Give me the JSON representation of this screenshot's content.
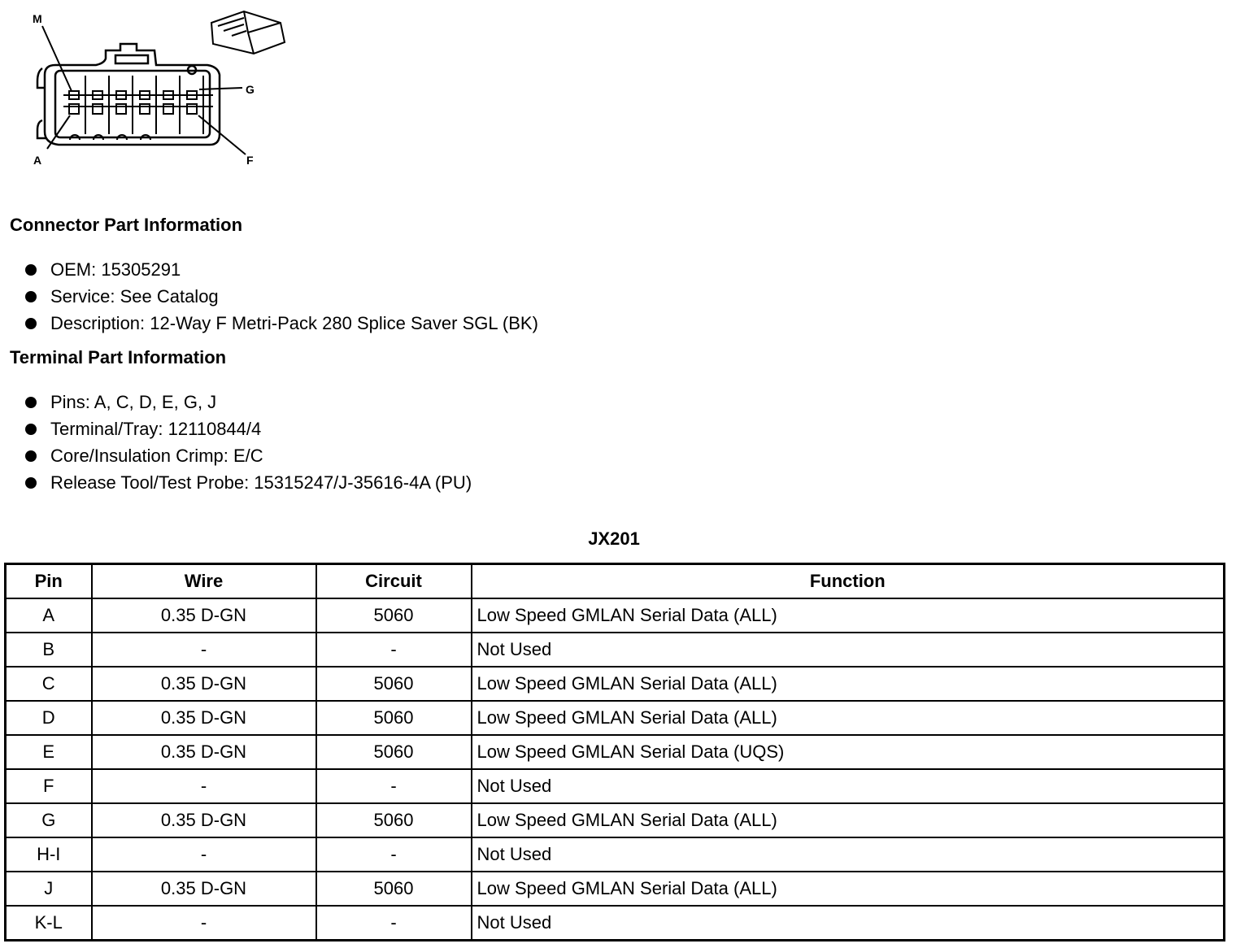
{
  "diagram": {
    "pin_labels": {
      "top_left": "M",
      "top_right": "G",
      "bottom_left": "A",
      "bottom_right": "F"
    }
  },
  "connector_info": {
    "heading": "Connector Part Information",
    "items": [
      "OEM: 15305291",
      "Service: See Catalog",
      "Description: 12-Way F Metri-Pack 280 Splice Saver SGL (BK)"
    ]
  },
  "terminal_info": {
    "heading": "Terminal Part Information",
    "items": [
      "Pins: A, C, D, E, G, J",
      "Terminal/Tray: 12110844/4",
      "Core/Insulation Crimp: E/C",
      "Release Tool/Test Probe: 15315247/J-35616-4A (PU)"
    ]
  },
  "table": {
    "title": "JX201",
    "headers": [
      "Pin",
      "Wire",
      "Circuit",
      "Function"
    ],
    "rows": [
      [
        "A",
        "0.35 D-GN",
        "5060",
        "Low Speed GMLAN Serial Data (ALL)"
      ],
      [
        "B",
        "-",
        "-",
        "Not Used"
      ],
      [
        "C",
        "0.35 D-GN",
        "5060",
        "Low Speed GMLAN Serial Data (ALL)"
      ],
      [
        "D",
        "0.35 D-GN",
        "5060",
        "Low Speed GMLAN Serial Data (ALL)"
      ],
      [
        "E",
        "0.35 D-GN",
        "5060",
        "Low Speed GMLAN Serial Data (UQS)"
      ],
      [
        "F",
        "-",
        "-",
        "Not Used"
      ],
      [
        "G",
        "0.35 D-GN",
        "5060",
        "Low Speed GMLAN Serial Data (ALL)"
      ],
      [
        "H-I",
        "-",
        "-",
        "Not Used"
      ],
      [
        "J",
        "0.35 D-GN",
        "5060",
        "Low Speed GMLAN Serial Data (ALL)"
      ],
      [
        "K-L",
        "-",
        "-",
        "Not Used"
      ]
    ]
  }
}
